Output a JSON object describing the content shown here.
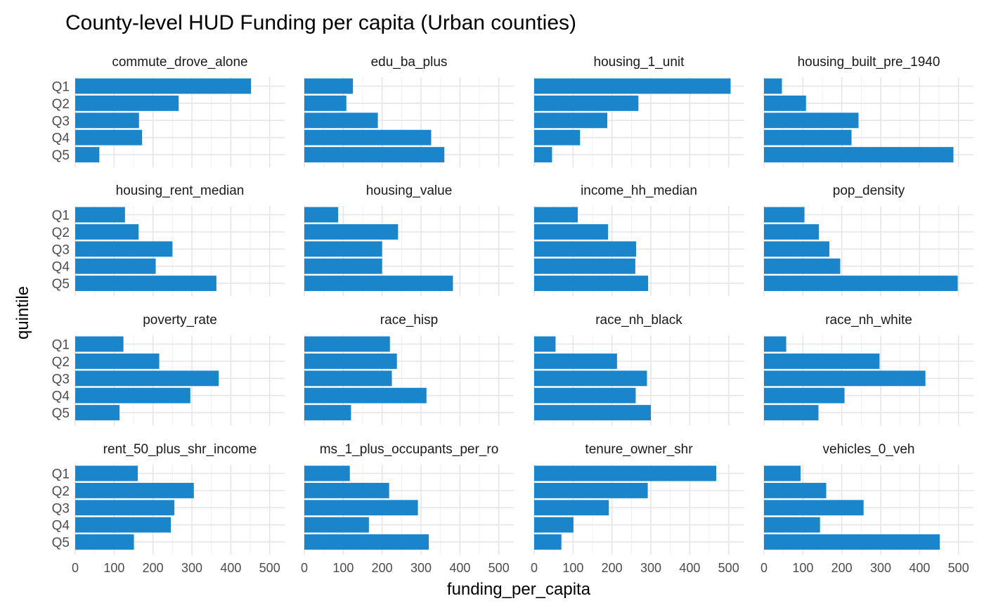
{
  "chart_data": {
    "type": "bar",
    "orientation": "horizontal",
    "layout": "facet_wrap 4x4",
    "title": "County-level HUD Funding per capita (Urban counties)",
    "xlabel": "funding_per_capita",
    "ylabel": "quintile",
    "categories": [
      "Q1",
      "Q2",
      "Q3",
      "Q4",
      "Q5"
    ],
    "xlim": [
      0,
      520
    ],
    "xticks": [
      0,
      100,
      200,
      300,
      400,
      500
    ],
    "bar_color": "#1B85CC",
    "panels": [
      {
        "name": "commute_drove_alone",
        "values": [
          452,
          266,
          164,
          172,
          62
        ]
      },
      {
        "name": "edu_ba_plus",
        "values": [
          125,
          108,
          189,
          326,
          360
        ]
      },
      {
        "name": "housing_1_unit",
        "values": [
          505,
          268,
          188,
          118,
          46
        ]
      },
      {
        "name": "housing_built_pre_1940",
        "values": [
          46,
          108,
          243,
          225,
          487
        ]
      },
      {
        "name": "housing_rent_median",
        "values": [
          128,
          163,
          250,
          207,
          363
        ]
      },
      {
        "name": "housing_value",
        "values": [
          87,
          241,
          200,
          200,
          382
        ]
      },
      {
        "name": "income_hh_median",
        "values": [
          112,
          190,
          262,
          260,
          293
        ]
      },
      {
        "name": "pop_density",
        "values": [
          104,
          141,
          168,
          196,
          498
        ]
      },
      {
        "name": "poverty_rate",
        "values": [
          124,
          216,
          369,
          296,
          114
        ]
      },
      {
        "name": "race_hisp",
        "values": [
          220,
          238,
          225,
          314,
          120
        ]
      },
      {
        "name": "race_nh_black",
        "values": [
          55,
          213,
          290,
          261,
          300
        ]
      },
      {
        "name": "race_nh_white",
        "values": [
          57,
          297,
          415,
          207,
          140
        ]
      },
      {
        "name": "rent_50_plus_shr_income",
        "values": [
          161,
          305,
          255,
          246,
          151
        ]
      },
      {
        "name": "ms_1_plus_occupants_per_ro",
        "values": [
          117,
          218,
          292,
          166,
          320
        ]
      },
      {
        "name": "tenure_owner_shr",
        "values": [
          468,
          292,
          192,
          101,
          70
        ]
      },
      {
        "name": "vehicles_0_veh",
        "values": [
          94,
          160,
          256,
          144,
          452
        ]
      }
    ]
  }
}
